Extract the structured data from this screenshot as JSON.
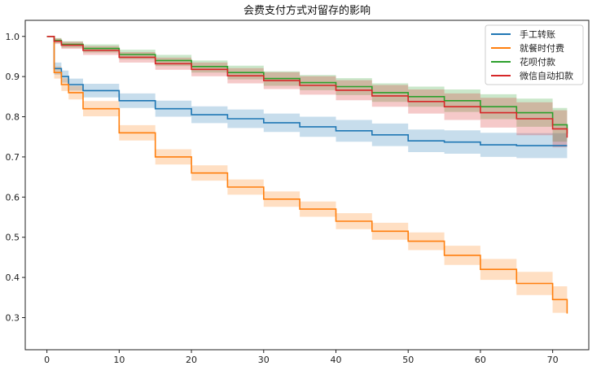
{
  "chart_data": {
    "type": "line",
    "title": "会费支付方式对留存的影响",
    "xlabel": "",
    "ylabel": "",
    "xlim": [
      -3,
      75
    ],
    "ylim": [
      0.22,
      1.04
    ],
    "xticks": [
      0,
      10,
      20,
      30,
      40,
      50,
      60,
      70
    ],
    "yticks": [
      0.3,
      0.4,
      0.5,
      0.6,
      0.7,
      0.8,
      0.9,
      1.0
    ],
    "xtick_labels": [
      "0",
      "10",
      "20",
      "30",
      "40",
      "50",
      "60",
      "70"
    ],
    "ytick_labels": [
      "0.3",
      "0.4",
      "0.5",
      "0.6",
      "0.7",
      "0.8",
      "0.9",
      "1.0"
    ],
    "grid": false,
    "legend_position": "top-right",
    "series": [
      {
        "name": "手工转账",
        "color": "#1f77b4",
        "x": [
          0,
          1,
          2,
          3,
          5,
          10,
          15,
          20,
          25,
          30,
          35,
          40,
          45,
          50,
          55,
          60,
          65,
          72
        ],
        "y": [
          1.0,
          0.92,
          0.9,
          0.88,
          0.865,
          0.84,
          0.82,
          0.805,
          0.795,
          0.785,
          0.775,
          0.765,
          0.755,
          0.74,
          0.737,
          0.73,
          0.728,
          0.728
        ],
        "ci_lower": [
          1.0,
          0.905,
          0.885,
          0.865,
          0.848,
          0.822,
          0.8,
          0.784,
          0.772,
          0.762,
          0.75,
          0.738,
          0.727,
          0.712,
          0.708,
          0.7,
          0.697,
          0.695
        ],
        "ci_upper": [
          1.0,
          0.935,
          0.915,
          0.895,
          0.882,
          0.858,
          0.84,
          0.826,
          0.818,
          0.808,
          0.8,
          0.792,
          0.783,
          0.768,
          0.766,
          0.76,
          0.759,
          0.76
        ]
      },
      {
        "name": "就餐时付费",
        "color": "#ff7f0e",
        "x": [
          0,
          1,
          2,
          3,
          5,
          10,
          15,
          20,
          25,
          30,
          35,
          40,
          45,
          50,
          55,
          60,
          65,
          70,
          72
        ],
        "y": [
          1.0,
          0.91,
          0.88,
          0.86,
          0.82,
          0.76,
          0.7,
          0.66,
          0.625,
          0.595,
          0.57,
          0.54,
          0.515,
          0.49,
          0.455,
          0.42,
          0.385,
          0.345,
          0.31
        ],
        "ci_lower": [
          1.0,
          0.895,
          0.864,
          0.843,
          0.801,
          0.741,
          0.681,
          0.641,
          0.606,
          0.576,
          0.551,
          0.52,
          0.494,
          0.468,
          0.431,
          0.394,
          0.356,
          0.312,
          0.26
        ],
        "ci_upper": [
          1.0,
          0.925,
          0.896,
          0.877,
          0.839,
          0.779,
          0.719,
          0.679,
          0.644,
          0.614,
          0.589,
          0.56,
          0.536,
          0.512,
          0.479,
          0.446,
          0.414,
          0.378,
          0.36
        ]
      },
      {
        "name": "花呗付款",
        "color": "#2ca02c",
        "x": [
          0,
          1,
          2,
          5,
          10,
          15,
          20,
          25,
          30,
          35,
          40,
          45,
          50,
          55,
          60,
          65,
          70,
          72
        ],
        "y": [
          1.0,
          0.99,
          0.98,
          0.97,
          0.955,
          0.94,
          0.925,
          0.91,
          0.895,
          0.885,
          0.875,
          0.86,
          0.85,
          0.84,
          0.825,
          0.81,
          0.78,
          0.758
        ],
        "ci_lower": [
          1.0,
          0.984,
          0.972,
          0.96,
          0.943,
          0.926,
          0.91,
          0.893,
          0.877,
          0.866,
          0.854,
          0.837,
          0.825,
          0.812,
          0.794,
          0.775,
          0.738,
          0.71
        ],
        "ci_upper": [
          1.0,
          0.996,
          0.988,
          0.98,
          0.967,
          0.954,
          0.94,
          0.927,
          0.913,
          0.904,
          0.896,
          0.883,
          0.875,
          0.868,
          0.856,
          0.845,
          0.822,
          0.805
        ]
      },
      {
        "name": "微信自动扣款",
        "color": "#d62728",
        "x": [
          0,
          1,
          2,
          5,
          10,
          15,
          20,
          25,
          30,
          35,
          40,
          45,
          50,
          55,
          60,
          65,
          70,
          72
        ],
        "y": [
          1.0,
          0.988,
          0.978,
          0.965,
          0.948,
          0.932,
          0.918,
          0.902,
          0.89,
          0.878,
          0.866,
          0.852,
          0.838,
          0.825,
          0.81,
          0.795,
          0.77,
          0.748
        ],
        "ci_lower": [
          1.0,
          0.981,
          0.969,
          0.954,
          0.935,
          0.917,
          0.901,
          0.883,
          0.869,
          0.855,
          0.841,
          0.825,
          0.808,
          0.792,
          0.773,
          0.754,
          0.724,
          0.695
        ],
        "ci_upper": [
          1.0,
          0.995,
          0.987,
          0.976,
          0.961,
          0.947,
          0.935,
          0.921,
          0.911,
          0.901,
          0.891,
          0.879,
          0.868,
          0.858,
          0.847,
          0.836,
          0.816,
          0.8
        ]
      }
    ]
  }
}
